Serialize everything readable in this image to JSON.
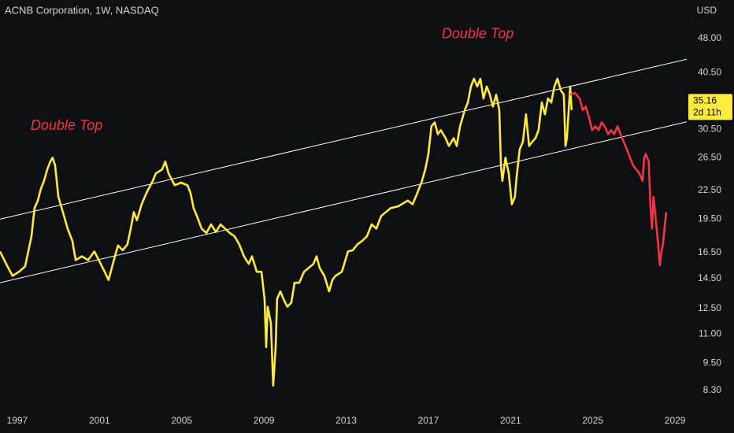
{
  "chart_data": {
    "type": "line",
    "title": "ACNB Corporation, 1W, NASDAQ",
    "currency": "USD",
    "yscale": "log",
    "grid": false,
    "xlim": [
      1996.16,
      2029.57
    ],
    "ylim": [
      7.55,
      58.2
    ],
    "xticks": [
      1997,
      2001,
      2005,
      2009,
      2013,
      2017,
      2021,
      2025,
      2029
    ],
    "yticks": [
      {
        "value": 48,
        "label": "48.00"
      },
      {
        "value": 40.5,
        "label": "40.50"
      },
      {
        "value": 30.5,
        "label": "30.50"
      },
      {
        "value": 26.5,
        "label": "26.50"
      },
      {
        "value": 22.5,
        "label": "22.50"
      },
      {
        "value": 19.5,
        "label": "19.50"
      },
      {
        "value": 16.5,
        "label": "16.50"
      },
      {
        "value": 14.5,
        "label": "14.50"
      },
      {
        "value": 12.5,
        "label": "12.50"
      },
      {
        "value": 11,
        "label": "11.00"
      },
      {
        "value": 9.5,
        "label": "9.50"
      },
      {
        "value": 8.3,
        "label": "8.30"
      }
    ],
    "last_price": {
      "value": 35.16,
      "countdown": "2d 11h",
      "color": "#ffeb3b"
    },
    "annotations": [
      {
        "text": "Double Top",
        "x": 1999.4,
        "value": 31.0,
        "color": "#f23645"
      },
      {
        "text": "Double Top",
        "x": 2019.4,
        "value": 49.0,
        "color": "#f23645"
      }
    ],
    "channel": [
      {
        "x": [
          1996.16,
          2029.57
        ],
        "values": [
          19.5,
          43.3
        ],
        "color": "#ffffff"
      },
      {
        "x": [
          1996.16,
          2029.57
        ],
        "values": [
          14.2,
          31.7
        ],
        "color": "#ffffff"
      }
    ],
    "series": [
      {
        "color": "#ffeb3b",
        "x": [
          1996.16,
          1996.46,
          1996.77,
          1997.08,
          1997.38,
          1997.69,
          1997.84,
          1998.0,
          1998.15,
          1998.3,
          1998.46,
          1998.61,
          1998.72,
          1998.84,
          1999.0,
          1999.22,
          1999.45,
          1999.68,
          1999.84,
          2000.14,
          2000.45,
          2000.75,
          2001.06,
          2001.25,
          2001.44,
          2001.6,
          2001.75,
          2001.9,
          2002.13,
          2002.36,
          2002.52,
          2002.67,
          2002.82,
          2003.05,
          2003.28,
          2003.59,
          2003.74,
          2004.05,
          2004.2,
          2004.36,
          2004.66,
          2004.97,
          2005.28,
          2005.43,
          2005.58,
          2005.74,
          2005.97,
          2006.2,
          2006.43,
          2006.66,
          2006.89,
          2007.11,
          2007.34,
          2007.57,
          2007.8,
          2008.03,
          2008.26,
          2008.42,
          2008.65,
          2008.88,
          2009.03,
          2009.11,
          2009.18,
          2009.34,
          2009.45,
          2009.57,
          2009.64,
          2009.8,
          2009.95,
          2010.14,
          2010.33,
          2010.49,
          2010.72,
          2010.95,
          2011.18,
          2011.41,
          2011.56,
          2011.71,
          2011.94,
          2012.17,
          2012.33,
          2012.48,
          2012.79,
          2013.09,
          2013.32,
          2013.55,
          2013.78,
          2014.01,
          2014.24,
          2014.47,
          2014.7,
          2014.93,
          2015.16,
          2015.54,
          2016.0,
          2016.23,
          2016.46,
          2016.69,
          2016.85,
          2017.0,
          2017.15,
          2017.31,
          2017.46,
          2017.61,
          2017.84,
          2018.0,
          2018.23,
          2018.38,
          2018.54,
          2018.77,
          2018.92,
          2019.07,
          2019.22,
          2019.38,
          2019.53,
          2019.68,
          2019.84,
          2019.99,
          2020.14,
          2020.3,
          2020.45,
          2020.53,
          2020.6,
          2020.75,
          2020.91,
          2021.06,
          2021.21,
          2021.29,
          2021.44,
          2021.6,
          2021.75,
          2021.9,
          2022.06,
          2022.21,
          2022.36,
          2022.52,
          2022.67,
          2022.82,
          2022.98,
          2023.13,
          2023.28,
          2023.44,
          2023.59,
          2023.67,
          2023.74,
          2023.9,
          2023.97
        ],
        "values": [
          16.6,
          15.6,
          14.7,
          15.0,
          15.4,
          17.9,
          20.6,
          21.4,
          22.7,
          23.6,
          25.0,
          26.0,
          26.5,
          25.5,
          21.8,
          20.2,
          18.6,
          17.5,
          15.9,
          16.2,
          15.9,
          16.6,
          15.6,
          15.0,
          14.4,
          15.3,
          16.2,
          17.1,
          16.7,
          17.2,
          18.6,
          20.2,
          19.4,
          21.0,
          22.2,
          23.6,
          24.5,
          25.0,
          26.0,
          24.5,
          23.1,
          23.4,
          23.1,
          22.2,
          20.6,
          19.8,
          18.6,
          18.2,
          19.0,
          18.3,
          19.0,
          18.6,
          18.2,
          17.9,
          17.2,
          16.2,
          15.6,
          16.2,
          15.0,
          15.0,
          13.1,
          10.3,
          12.6,
          11.6,
          8.5,
          10.3,
          13.1,
          13.6,
          13.1,
          12.6,
          12.85,
          14.2,
          14.2,
          15.0,
          15.3,
          15.6,
          16.2,
          15.3,
          14.7,
          13.6,
          14.4,
          14.7,
          15.0,
          16.6,
          16.7,
          17.2,
          17.5,
          17.9,
          19.0,
          18.6,
          19.8,
          20.2,
          20.6,
          20.8,
          21.4,
          21.0,
          22.2,
          23.6,
          25.0,
          27.0,
          31.0,
          31.6,
          29.8,
          30.4,
          29.2,
          28.1,
          29.2,
          28.1,
          31.0,
          33.6,
          34.9,
          37.8,
          39.3,
          37.8,
          39.3,
          35.6,
          37.8,
          36.3,
          34.2,
          36.3,
          33.6,
          25.5,
          23.6,
          26.5,
          24.5,
          21.0,
          21.8,
          24.0,
          27.6,
          28.7,
          32.9,
          28.1,
          28.7,
          29.2,
          30.4,
          34.9,
          32.9,
          35.6,
          34.9,
          37.8,
          39.3,
          37.1,
          36.3,
          28.1,
          29.2,
          37.8,
          33.6
        ]
      },
      {
        "color": "#f23645",
        "x": [
          2023.9,
          2024.13,
          2024.36,
          2024.51,
          2024.66,
          2024.82,
          2024.97,
          2025.12,
          2025.28,
          2025.43,
          2025.58,
          2025.74,
          2025.89,
          2026.04,
          2026.2,
          2026.35,
          2026.5,
          2026.66,
          2026.81,
          2026.96,
          2027.11,
          2027.27,
          2027.42,
          2027.5,
          2027.57,
          2027.72,
          2027.8,
          2027.88,
          2027.95,
          2028.03,
          2028.18,
          2028.26,
          2028.34,
          2028.41,
          2028.57
        ],
        "values": [
          36.3,
          36.6,
          35.6,
          33.6,
          34.2,
          32.3,
          30.4,
          31.0,
          30.4,
          31.6,
          31.0,
          29.8,
          30.4,
          29.8,
          31.0,
          29.8,
          28.7,
          27.6,
          26.5,
          25.5,
          25.0,
          24.5,
          23.6,
          26.5,
          27.0,
          26.0,
          21.0,
          18.6,
          21.8,
          20.2,
          17.2,
          15.5,
          16.6,
          17.2,
          20.2
        ]
      }
    ]
  }
}
